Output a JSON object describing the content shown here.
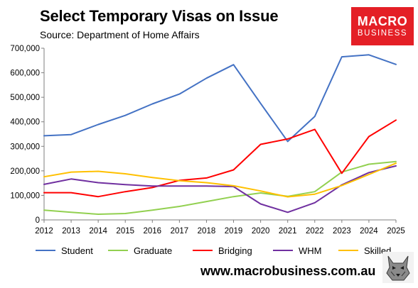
{
  "header": {
    "title": "Select Temporary Visas on Issue",
    "subtitle": "Source: Department of Home Affairs"
  },
  "logo": {
    "line1": "MACRO",
    "line2": "BUSINESS",
    "color": "#e41f26"
  },
  "footer": {
    "url": "www.macrobusiness.com.au",
    "icon": "wolf-icon"
  },
  "chart_data": {
    "type": "line",
    "x": [
      2012,
      2013,
      2014,
      2015,
      2016,
      2017,
      2018,
      2019,
      2020,
      2021,
      2022,
      2023,
      2024,
      2025
    ],
    "ylim": [
      0,
      700000
    ],
    "yticks": [
      0,
      100000,
      200000,
      300000,
      400000,
      500000,
      600000,
      700000
    ],
    "ytick_labels": [
      "0",
      "100,000",
      "200,000",
      "300,000",
      "400,000",
      "500,000",
      "600,000",
      "700,000"
    ],
    "grid": false,
    "legend_position": "bottom",
    "series": [
      {
        "name": "Student",
        "color": "#4472c4",
        "values": [
          343000,
          348000,
          389000,
          426000,
          473000,
          513000,
          578000,
          633000,
          475000,
          320000,
          422000,
          665000,
          673000,
          634000
        ]
      },
      {
        "name": "Graduate",
        "color": "#92d050",
        "values": [
          40000,
          31000,
          23000,
          26000,
          40000,
          55000,
          75000,
          95000,
          110000,
          96000,
          115000,
          195000,
          227000,
          238000
        ]
      },
      {
        "name": "Bridging",
        "color": "#ff0000",
        "values": [
          111000,
          111000,
          95000,
          115000,
          132000,
          161000,
          171000,
          204000,
          308000,
          330000,
          369000,
          190000,
          340000,
          407000
        ]
      },
      {
        "name": "WHM",
        "color": "#7030a0",
        "values": [
          145000,
          167000,
          152000,
          144000,
          138000,
          138000,
          138000,
          136000,
          65000,
          31000,
          70000,
          143000,
          193000,
          220000
        ]
      },
      {
        "name": "Skilled",
        "color": "#ffc000",
        "values": [
          176000,
          195000,
          198000,
          188000,
          173000,
          160000,
          152000,
          139000,
          118000,
          94000,
          105000,
          140000,
          185000,
          231000
        ]
      }
    ]
  }
}
